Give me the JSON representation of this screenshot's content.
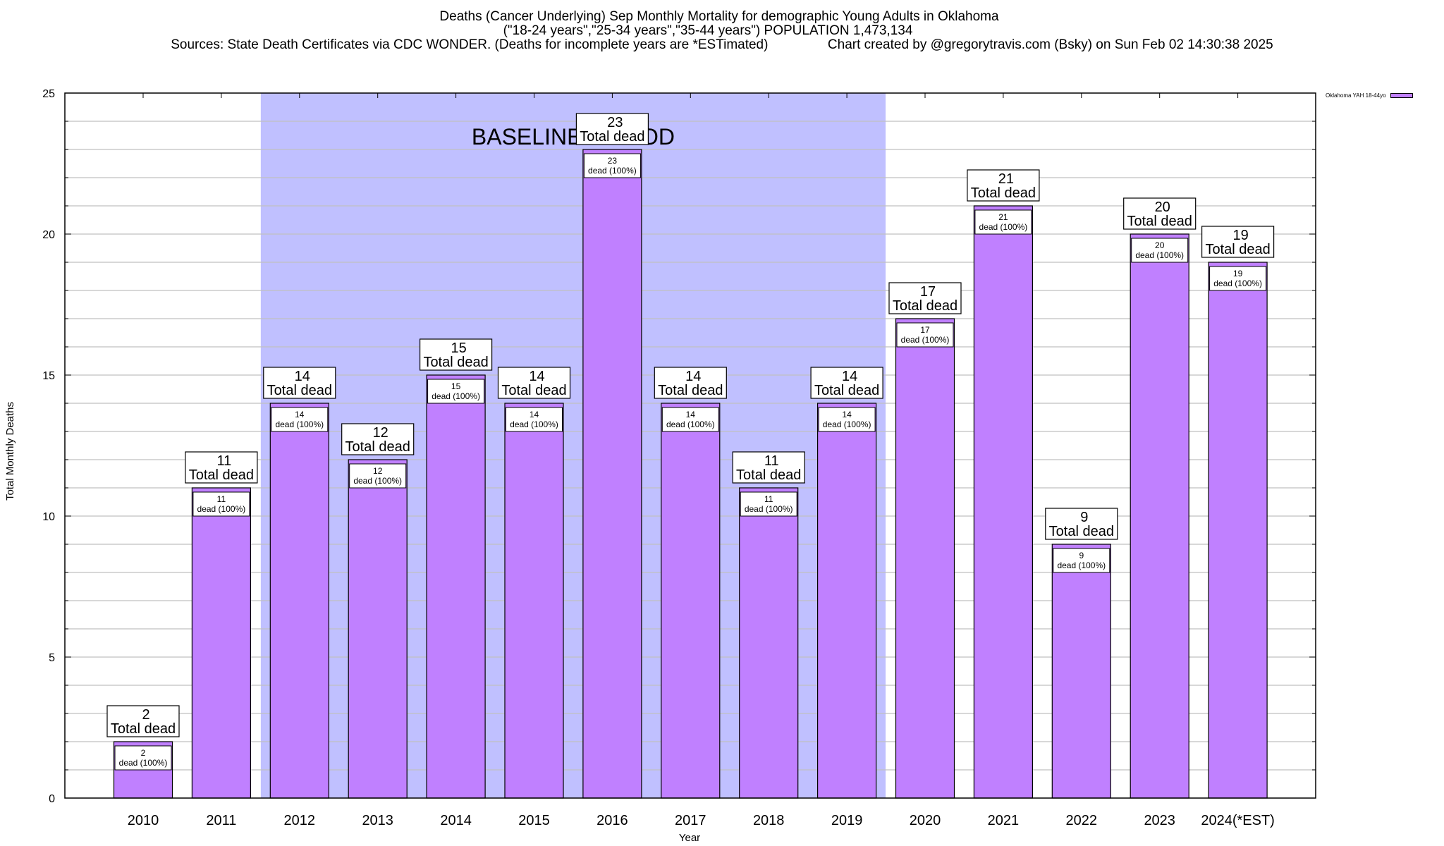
{
  "header": {
    "title_line1": "Deaths (Cancer Underlying) Sep Monthly Mortality for demographic Young Adults in Oklahoma",
    "title_line2": "(\"18-24 years\",\"25-34 years\",\"35-44 years\") POPULATION 1,473,134",
    "title_line3": "Sources: State Death Certificates via CDC WONDER. (Deaths for incomplete years are *ESTimated)                Chart created by @gregorytravis.com (Bsky) on Sun Feb 02 14:30:38 2025"
  },
  "colors": {
    "bar": "#c080ff",
    "baseline_shade": "#c0c0ff",
    "grid": "#c0c0c0"
  },
  "chart_data": {
    "type": "bar",
    "title": "Deaths (Cancer Underlying) Sep Monthly Mortality for demographic Young Adults in Oklahoma",
    "xlabel": "Year",
    "ylabel": "Total Monthly Deaths",
    "ylim": [
      0,
      25
    ],
    "yticks": [
      0,
      5,
      10,
      15,
      20,
      25
    ],
    "grid": true,
    "legend_position": "top-right",
    "categories": [
      "2010",
      "2011",
      "2012",
      "2013",
      "2014",
      "2015",
      "2016",
      "2017",
      "2018",
      "2019",
      "2020",
      "2021",
      "2022",
      "2023",
      "2024(*EST)"
    ],
    "series": [
      {
        "name": "Oklahoma YAH 18-44yo",
        "values": [
          2,
          11,
          14,
          12,
          15,
          14,
          23,
          14,
          11,
          14,
          17,
          21,
          9,
          20,
          19
        ]
      }
    ],
    "total_label_suffix": "Total dead",
    "inner_label_suffix": "dead (100%)",
    "baseline": {
      "label": "BASELINE PERIOD",
      "from": "2012",
      "to": "2019"
    }
  }
}
